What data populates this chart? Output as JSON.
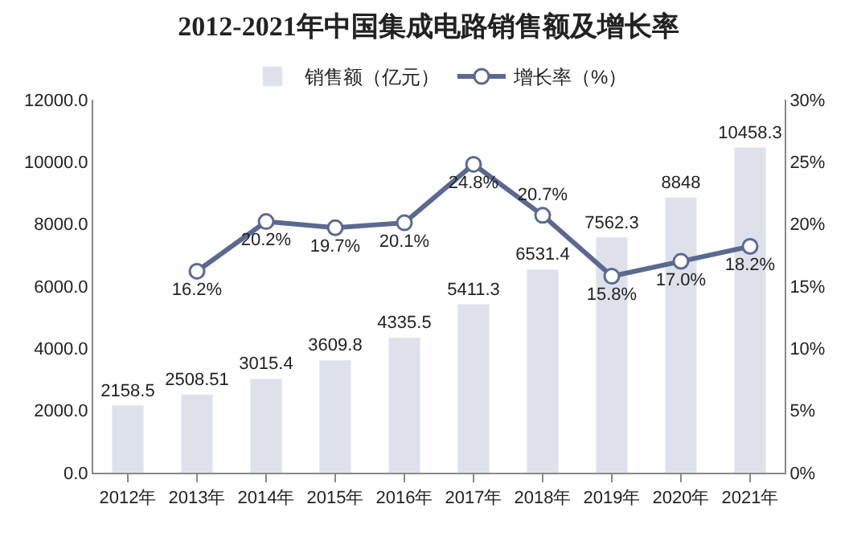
{
  "chart_data": {
    "type": "bar",
    "title": "2012-2021年中国集成电路销售额及增长率",
    "categories": [
      "2012年",
      "2013年",
      "2014年",
      "2015年",
      "2016年",
      "2017年",
      "2018年",
      "2019年",
      "2020年",
      "2021年"
    ],
    "series": [
      {
        "name": "销售额（亿元）",
        "color": "#dee1ea",
        "values": [
          2158.5,
          2508.51,
          3015.4,
          3609.8,
          4335.5,
          5411.3,
          6531.4,
          7562.3,
          8848,
          10458.3
        ],
        "value_labels": [
          "2158.5",
          "2508.51",
          "3015.4",
          "3609.8",
          "4335.5",
          "5411.3",
          "6531.4",
          "7562.3",
          "8848",
          "10458.3"
        ]
      },
      {
        "name": "增长率（%）",
        "type": "line",
        "axis": "y2",
        "color": "#5b6991",
        "marker": "circle",
        "values": [
          null,
          16.2,
          20.2,
          19.7,
          20.1,
          24.8,
          20.7,
          15.8,
          17.0,
          18.2
        ],
        "value_labels": [
          null,
          "16.2%",
          "20.2%",
          "19.7%",
          "20.1%",
          "24.8%",
          "20.7%",
          "15.8%",
          "17.0%",
          "18.2%"
        ]
      }
    ],
    "ylim": [
      0,
      12000
    ],
    "yticks": [
      {
        "value": 0,
        "label": "0.0"
      },
      {
        "value": 2000,
        "label": "2000.0"
      },
      {
        "value": 4000,
        "label": "4000.0"
      },
      {
        "value": 6000,
        "label": "6000.0"
      },
      {
        "value": 8000,
        "label": "8000.0"
      },
      {
        "value": 10000,
        "label": "10000.0"
      },
      {
        "value": 12000,
        "label": "12000.0"
      }
    ],
    "y2lim": [
      0,
      30
    ],
    "y2ticks": [
      {
        "value": 0,
        "label": "0%"
      },
      {
        "value": 5,
        "label": "5%"
      },
      {
        "value": 10,
        "label": "10%"
      },
      {
        "value": 15,
        "label": "15%"
      },
      {
        "value": 20,
        "label": "20%"
      },
      {
        "value": 25,
        "label": "25%"
      },
      {
        "value": 30,
        "label": "30%"
      }
    ],
    "grid": false,
    "legend": "top"
  }
}
